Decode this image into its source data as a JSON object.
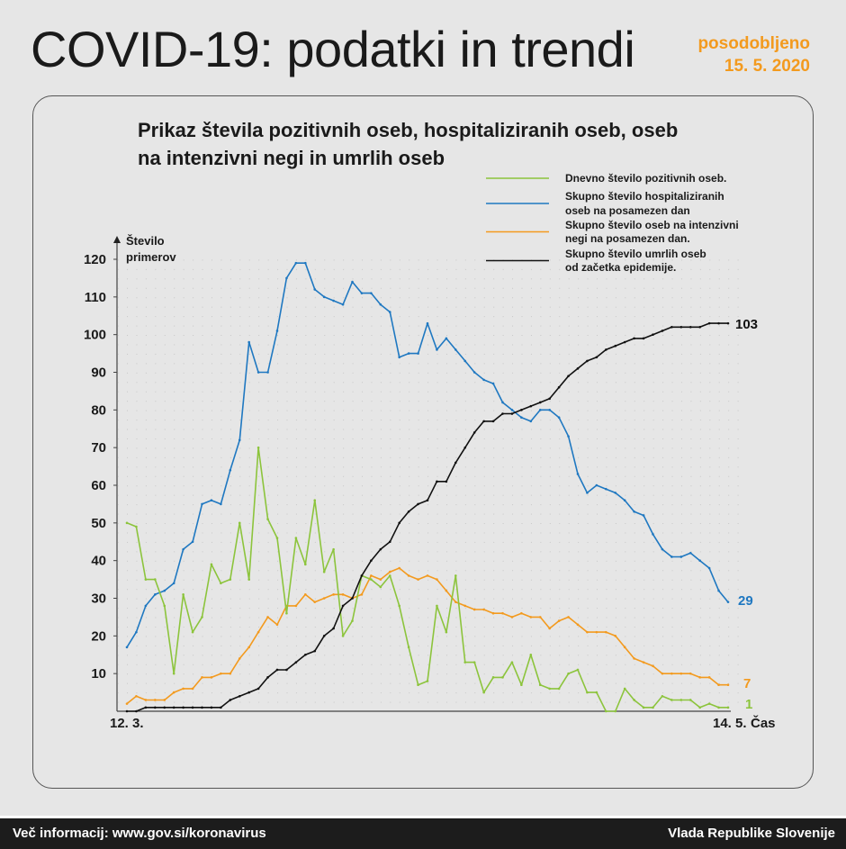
{
  "header": {
    "title": "COVID-19: podatki in trendi",
    "updated_label": "posodobljeno",
    "updated_date": "15. 5. 2020"
  },
  "footer": {
    "info": "Več informacij: www.gov.si/koronavirus",
    "org": "Vlada Republike Slovenije"
  },
  "chart_data": {
    "type": "line",
    "title_lines": [
      "Prikaz števila pozitivnih oseb, hospitaliziranih oseb, oseb",
      "na intenzivni negi in umrlih oseb"
    ],
    "ylabel_lines": [
      "Število",
      "primerov"
    ],
    "xlabel": "Čas",
    "x_start_label": "12. 3.",
    "x_end_label": "14. 5.",
    "ylim": [
      0,
      120
    ],
    "yticks": [
      10,
      20,
      30,
      40,
      50,
      60,
      70,
      80,
      90,
      100,
      110,
      120
    ],
    "grid": true,
    "legend_placement": "top-right",
    "series": [
      {
        "key": "positive",
        "name_lines": [
          "Dnevno število pozitivnih oseb."
        ],
        "color": "#8cc43c",
        "end_label": "1",
        "values": [
          50,
          49,
          35,
          35,
          28,
          10,
          31,
          21,
          25,
          39,
          34,
          35,
          50,
          35,
          70,
          51,
          46,
          26,
          46,
          39,
          56,
          37,
          43,
          20,
          24,
          36,
          35,
          33,
          36,
          28,
          17,
          7,
          8,
          28,
          21,
          36,
          13,
          13,
          5,
          9,
          9,
          13,
          7,
          15,
          7,
          6,
          6,
          10,
          11,
          5,
          5,
          0,
          0,
          6,
          3,
          1,
          1,
          4,
          3,
          3,
          3,
          1,
          2,
          1,
          1
        ]
      },
      {
        "key": "hospitalized",
        "name_lines": [
          "Skupno število hospitaliziranih",
          "oseb na posamezen dan"
        ],
        "color": "#1f78c1",
        "end_label": "29",
        "values": [
          17,
          21,
          28,
          31,
          32,
          34,
          43,
          45,
          55,
          56,
          55,
          64,
          72,
          98,
          90,
          90,
          101,
          115,
          119,
          119,
          112,
          110,
          109,
          108,
          114,
          111,
          111,
          108,
          106,
          94,
          95,
          95,
          103,
          96,
          99,
          96,
          93,
          90,
          88,
          87,
          82,
          80,
          78,
          77,
          80,
          80,
          78,
          73,
          63,
          58,
          60,
          59,
          58,
          56,
          53,
          52,
          47,
          43,
          41,
          41,
          42,
          40,
          38,
          32,
          29
        ]
      },
      {
        "key": "icu",
        "name_lines": [
          "Skupno število oseb na intenzivni",
          "negi na posamezen dan."
        ],
        "color": "#f39a1e",
        "end_label": "7",
        "values": [
          2,
          4,
          3,
          3,
          3,
          5,
          6,
          6,
          9,
          9,
          10,
          10,
          14,
          17,
          21,
          25,
          23,
          28,
          28,
          31,
          29,
          30,
          31,
          31,
          30,
          31,
          36,
          35,
          37,
          38,
          36,
          35,
          36,
          35,
          32,
          29,
          28,
          27,
          27,
          26,
          26,
          25,
          26,
          25,
          25,
          22,
          24,
          25,
          23,
          21,
          21,
          21,
          20,
          17,
          14,
          13,
          12,
          10,
          10,
          10,
          10,
          9,
          9,
          7,
          7
        ]
      },
      {
        "key": "deaths",
        "name_lines": [
          "Skupno število umrlih oseb",
          "od začetka epidemije."
        ],
        "color": "#111111",
        "end_label": "103",
        "values": [
          0,
          0,
          1,
          1,
          1,
          1,
          1,
          1,
          1,
          1,
          1,
          3,
          4,
          5,
          6,
          9,
          11,
          11,
          13,
          15,
          16,
          20,
          22,
          28,
          30,
          36,
          40,
          43,
          45,
          50,
          53,
          55,
          56,
          61,
          61,
          66,
          70,
          74,
          77,
          77,
          79,
          79,
          80,
          81,
          82,
          83,
          86,
          89,
          91,
          93,
          94,
          96,
          97,
          98,
          99,
          99,
          100,
          101,
          102,
          102,
          102,
          102,
          103,
          103,
          103
        ]
      }
    ]
  }
}
